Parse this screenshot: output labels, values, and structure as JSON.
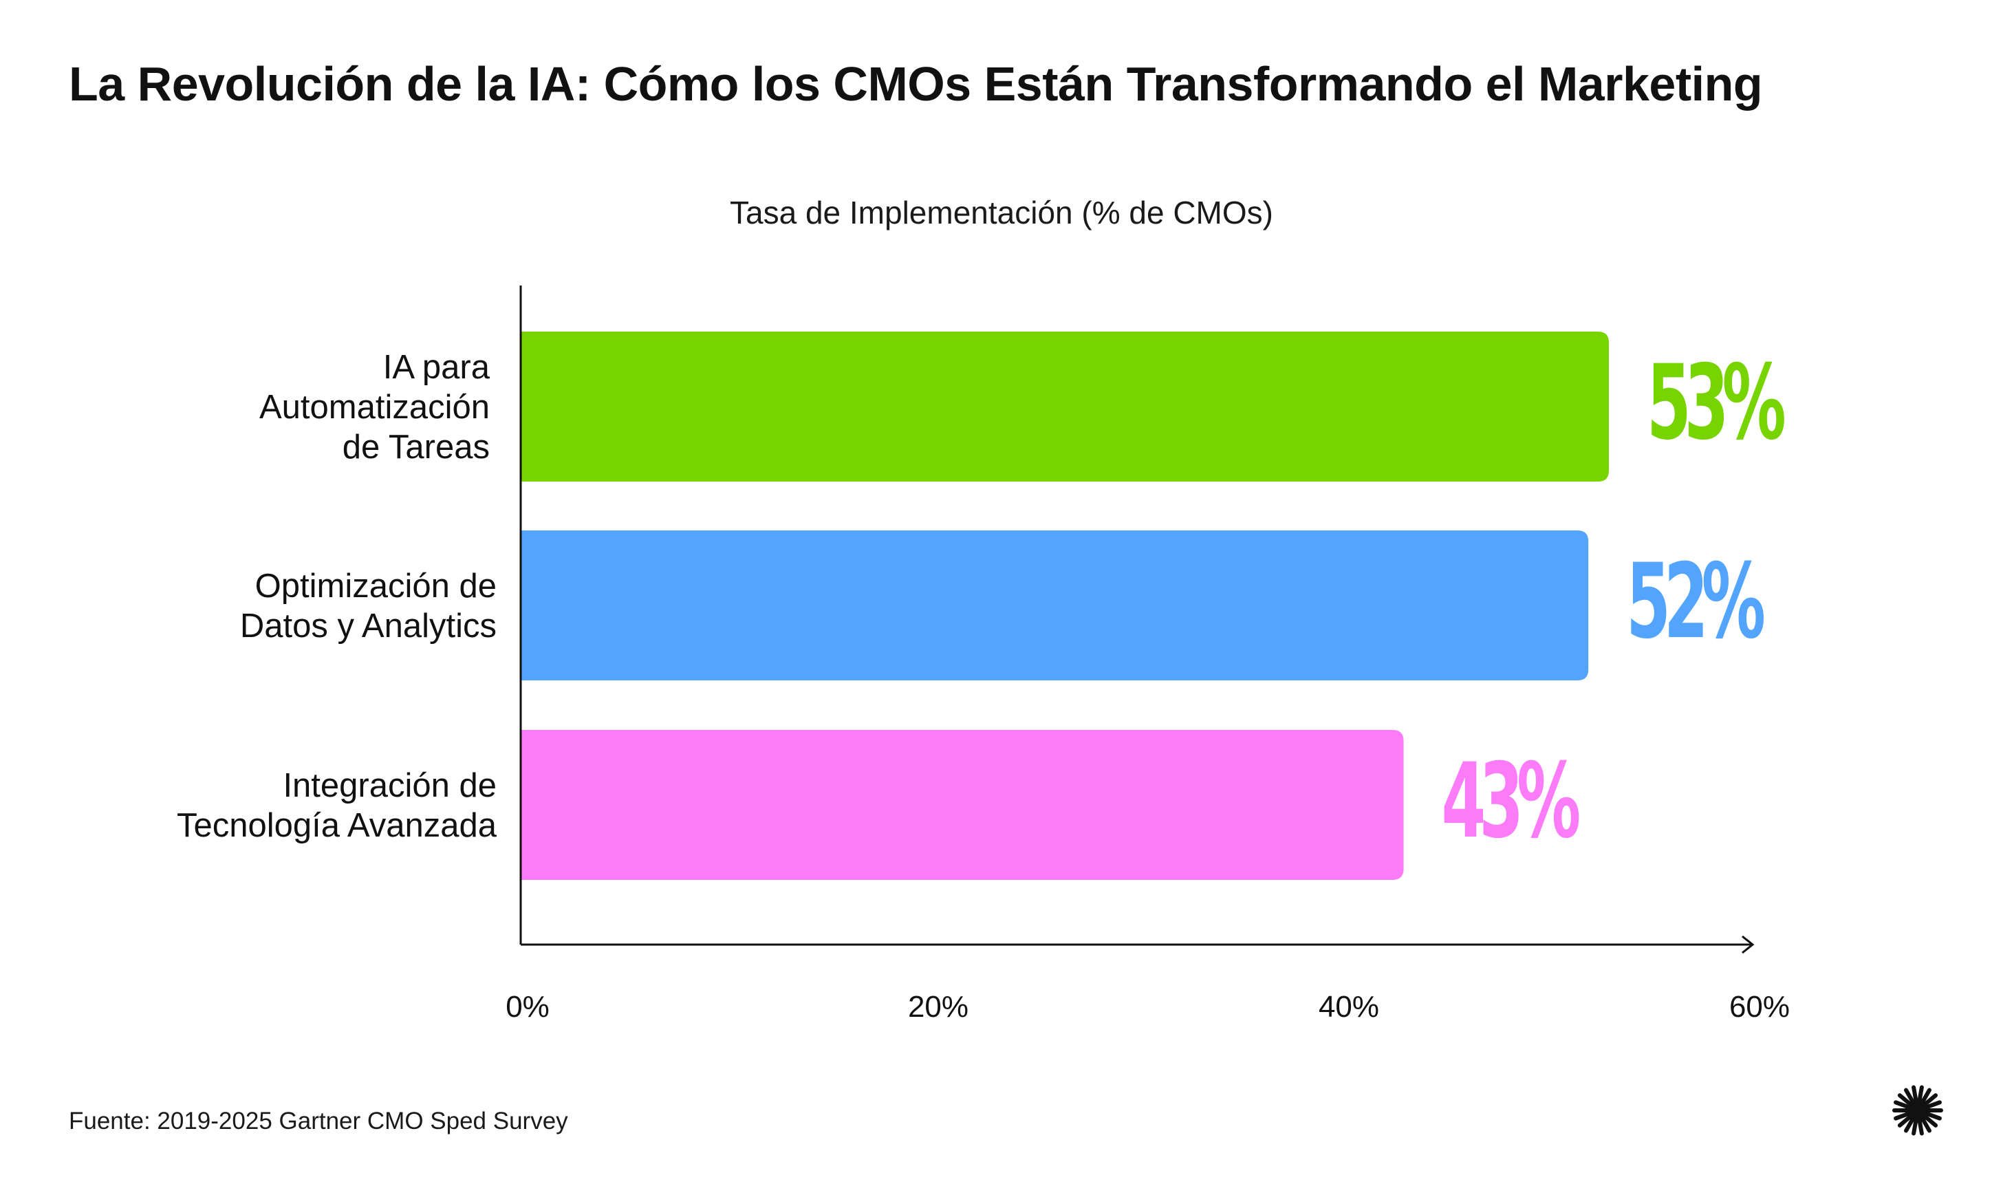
{
  "title": "La Revolución de la IA: Cómo los CMOs Están Transformando el Marketing",
  "source": "Fuente: 2019-2025 Gartner CMO Sped Survey",
  "logo_icon": "starburst-icon",
  "chart_data": {
    "type": "bar",
    "orientation": "horizontal",
    "title": "Tasa de Implementación (% de CMOs)",
    "xlabel": "",
    "ylabel": "",
    "xlim": [
      0,
      60
    ],
    "grid": false,
    "categories": [
      [
        "IA para",
        "Automatización",
        "de Tareas"
      ],
      [
        "Optimización de",
        "Datos y Analytics"
      ],
      [
        "Integración de",
        "Tecnología Avanzada"
      ]
    ],
    "values": [
      53,
      52,
      43
    ],
    "value_labels": [
      "53%",
      "52%",
      "43%"
    ],
    "colors": [
      "#78D400",
      "#52A4FD",
      "#FC7BF8"
    ],
    "x_ticks": [
      {
        "value": 0,
        "label": "0%"
      },
      {
        "value": 20,
        "label": "20%"
      },
      {
        "value": 40,
        "label": "40%"
      },
      {
        "value": 60,
        "label": "60%"
      }
    ]
  }
}
